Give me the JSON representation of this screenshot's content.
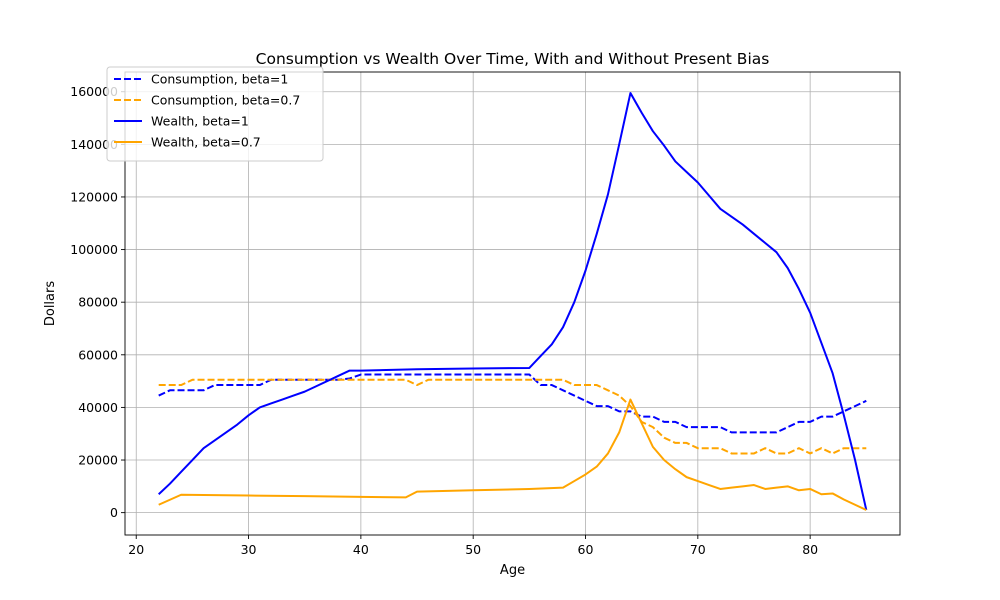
{
  "chart_data": {
    "type": "line",
    "title": "Consumption vs Wealth Over Time, With and Without Present Bias",
    "xlabel": "Age",
    "ylabel": "Dollars",
    "xlim": [
      19,
      88
    ],
    "ylim": [
      -8500,
      167500
    ],
    "xticks": [
      20,
      30,
      40,
      50,
      60,
      70,
      80
    ],
    "yticks": [
      0,
      20000,
      40000,
      60000,
      80000,
      100000,
      120000,
      140000,
      160000
    ],
    "grid": true,
    "legend_position": "top-left",
    "series": [
      {
        "name": "Consumption, beta=1",
        "color": "#0000ff",
        "style": "dashed",
        "x": [
          22,
          23,
          24,
          25,
          26,
          27,
          28,
          29,
          30,
          31,
          32,
          33,
          34,
          35,
          36,
          37,
          38,
          39,
          40,
          45,
          50,
          55,
          56,
          57,
          58,
          59,
          60,
          61,
          62,
          63,
          64,
          65,
          66,
          67,
          68,
          69,
          70,
          71,
          72,
          73,
          74,
          75,
          76,
          77,
          78,
          79,
          80,
          81,
          82,
          83,
          84,
          85
        ],
        "y": [
          44500,
          46500,
          46500,
          46500,
          46500,
          48500,
          48500,
          48500,
          48500,
          48500,
          50500,
          50500,
          50500,
          50500,
          50500,
          50500,
          50500,
          51000,
          52500,
          52500,
          52500,
          52500,
          48500,
          48500,
          46500,
          44500,
          42500,
          40500,
          40500,
          38500,
          38500,
          36500,
          36500,
          34500,
          34500,
          32500,
          32500,
          32500,
          32500,
          30500,
          30500,
          30500,
          30500,
          30500,
          32500,
          34500,
          34500,
          36500,
          36500,
          38500,
          40500,
          42500
        ]
      },
      {
        "name": "Consumption, beta=0.7",
        "color": "#ffa500",
        "style": "dashed",
        "x": [
          22,
          23,
          24,
          25,
          26,
          30,
          35,
          40,
          44,
          45,
          46,
          50,
          55,
          58,
          59,
          60,
          61,
          62,
          63,
          64,
          65,
          66,
          67,
          68,
          69,
          70,
          71,
          72,
          73,
          74,
          75,
          76,
          77,
          78,
          79,
          80,
          81,
          82,
          83,
          84,
          85
        ],
        "y": [
          48500,
          48500,
          48500,
          50500,
          50500,
          50500,
          50500,
          50500,
          50500,
          48500,
          50500,
          50500,
          50500,
          50500,
          48500,
          48500,
          48500,
          46500,
          44500,
          40500,
          34500,
          32500,
          28500,
          26500,
          26500,
          24500,
          24500,
          24500,
          22500,
          22500,
          22500,
          24500,
          22500,
          22500,
          24500,
          22500,
          24500,
          22500,
          24500,
          24500,
          24500
        ]
      },
      {
        "name": "Wealth, beta=1",
        "color": "#0000ff",
        "style": "solid",
        "x": [
          22,
          23,
          24,
          25,
          26,
          27,
          28,
          29,
          30,
          31,
          32,
          33,
          34,
          35,
          36,
          37,
          38,
          39,
          40,
          45,
          50,
          55,
          56,
          57,
          58,
          59,
          60,
          61,
          62,
          63,
          64,
          65,
          66,
          67,
          68,
          69,
          70,
          71,
          72,
          73,
          74,
          75,
          76,
          77,
          78,
          79,
          80,
          81,
          82,
          83,
          84,
          85
        ],
        "y": [
          7000,
          11000,
          15500,
          20000,
          24500,
          27500,
          30500,
          33500,
          37000,
          40000,
          41500,
          43000,
          44500,
          46000,
          48000,
          50000,
          52000,
          54000,
          54000,
          54500,
          54800,
          55000,
          59500,
          64000,
          70500,
          80000,
          92000,
          106000,
          121000,
          140000,
          159500,
          152000,
          145000,
          139500,
          133500,
          129500,
          125500,
          120500,
          115500,
          112500,
          109500,
          106000,
          102500,
          99000,
          93000,
          85000,
          76000,
          64500,
          53000,
          37000,
          20000,
          1000
        ]
      },
      {
        "name": "Wealth, beta=0.7",
        "color": "#ffa500",
        "style": "solid",
        "x": [
          22,
          24,
          30,
          35,
          40,
          44,
          45,
          50,
          55,
          58,
          59,
          60,
          61,
          62,
          63,
          64,
          65,
          66,
          67,
          68,
          69,
          70,
          71,
          72,
          73,
          74,
          75,
          76,
          77,
          78,
          79,
          80,
          81,
          82,
          83,
          84,
          85
        ],
        "y": [
          3000,
          6800,
          6500,
          6300,
          6000,
          5800,
          8000,
          8500,
          9000,
          9500,
          12000,
          14500,
          17500,
          22500,
          30500,
          43000,
          34000,
          25000,
          20000,
          16500,
          13500,
          12000,
          10500,
          9000,
          9500,
          10000,
          10500,
          9000,
          9500,
          10000,
          8500,
          9000,
          7000,
          7300,
          5000,
          3000,
          1000
        ]
      }
    ]
  }
}
